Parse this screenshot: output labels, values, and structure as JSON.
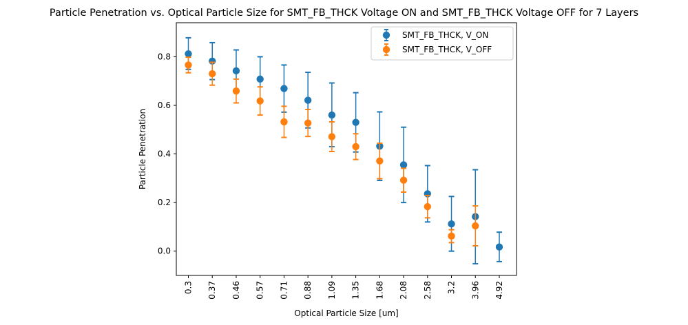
{
  "chart_data": {
    "type": "scatter",
    "title": "Particle Penetration vs. Optical Particle Size for SMT_FB_THCK Voltage ON and SMT_FB_THCK Voltage OFF for 7 Layers",
    "xlabel": "Optical Particle Size [um]",
    "ylabel": "Particle Penetration",
    "categories": [
      "0.3",
      "0.37",
      "0.46",
      "0.57",
      "0.71",
      "0.88",
      "1.09",
      "1.35",
      "1.68",
      "2.08",
      "2.58",
      "3.2",
      "3.96",
      "4.92"
    ],
    "ylim": [
      -0.1,
      0.94
    ],
    "yticks": [
      "0.0",
      "0.2",
      "0.4",
      "0.6",
      "0.8"
    ],
    "ytick_values": [
      0.0,
      0.2,
      0.4,
      0.6,
      0.8
    ],
    "grid": false,
    "legend_position": "top-right",
    "series": [
      {
        "name": "SMT_FB_THCK, V_ON",
        "color": "#1f77b4",
        "values": [
          0.812,
          0.782,
          0.742,
          0.708,
          0.669,
          0.621,
          0.56,
          0.53,
          0.432,
          0.355,
          0.236,
          0.112,
          0.142,
          0.017
        ],
        "lower": [
          0.748,
          0.706,
          0.656,
          0.616,
          0.572,
          0.507,
          0.43,
          0.408,
          0.291,
          0.2,
          0.12,
          0.0,
          -0.052,
          -0.043
        ],
        "upper": [
          0.878,
          0.858,
          0.828,
          0.8,
          0.766,
          0.736,
          0.692,
          0.652,
          0.573,
          0.51,
          0.352,
          0.225,
          0.335,
          0.078
        ]
      },
      {
        "name": "SMT_FB_THCK, V_OFF",
        "color": "#ff7f0e",
        "values": [
          0.766,
          0.73,
          0.659,
          0.618,
          0.532,
          0.527,
          0.471,
          0.43,
          0.371,
          0.292,
          0.183,
          0.062,
          0.104
        ],
        "lower": [
          0.734,
          0.683,
          0.61,
          0.56,
          0.468,
          0.472,
          0.41,
          0.377,
          0.298,
          0.243,
          0.137,
          0.035,
          0.022
        ],
        "upper": [
          0.798,
          0.777,
          0.708,
          0.676,
          0.596,
          0.583,
          0.532,
          0.483,
          0.444,
          0.341,
          0.229,
          0.088,
          0.186
        ]
      }
    ]
  }
}
